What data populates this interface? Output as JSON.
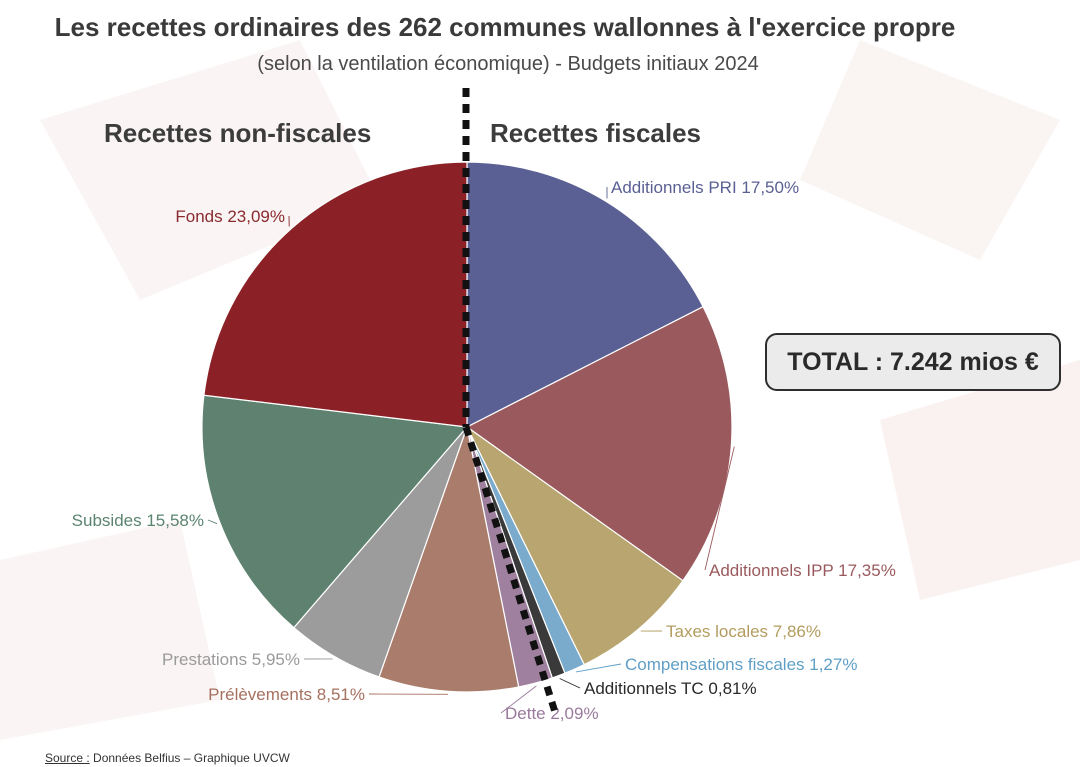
{
  "header": {
    "title": "Les recettes ordinaires des 262 communes wallonnes à l'exercice propre",
    "subtitle": "(selon la ventilation économique) - Budgets initiaux 2024"
  },
  "sides": {
    "left": "Recettes non-fiscales",
    "right": "Recettes fiscales"
  },
  "total_label": "TOTAL : 7.242 mios €",
  "source": {
    "prefix": "Source :",
    "text": "Données Belfius – Graphique UVCW"
  },
  "colors": {
    "divider": "#111111",
    "background_watermark": "#f6e3e0"
  },
  "chart_data": {
    "type": "pie",
    "title": "Les recettes ordinaires des 262 communes wallonnes à l'exercice propre",
    "legend": "none",
    "slices": [
      {
        "label": "Additionnels PRI 17,50%",
        "value": 17.5,
        "color": "#5a6093",
        "label_color": "#5a6093"
      },
      {
        "label": "Additionnels IPP 17,35%",
        "value": 17.35,
        "color": "#9a5a5d",
        "label_color": "#9a5a5d"
      },
      {
        "label": "Taxes locales 7,86%",
        "value": 7.86,
        "color": "#b8a56f",
        "label_color": "#b39c5f"
      },
      {
        "label": "Compensations fiscales 1,27%",
        "value": 1.27,
        "color": "#7aabcc",
        "label_color": "#5f9fc6"
      },
      {
        "label": "Additionnels TC 0,81%",
        "value": 0.81,
        "color": "#3a3a3a",
        "label_color": "#2a2a2a"
      },
      {
        "label": "Dette 2,09%",
        "value": 2.09,
        "color": "#a0809f",
        "label_color": "#9a7a9c"
      },
      {
        "label": "Prélèvements 8,51%",
        "value": 8.51,
        "color": "#a97c6c",
        "label_color": "#a6705f"
      },
      {
        "label": "Prestations 5,95%",
        "value": 5.95,
        "color": "#9c9c9c",
        "label_color": "#9a9a9a"
      },
      {
        "label": "Subsides 15,58%",
        "value": 15.58,
        "color": "#5e826f",
        "label_color": "#5b8470"
      },
      {
        "label": "Fonds 23,09%",
        "value": 23.09,
        "color": "#8b2127",
        "label_color": "#8a2a2f"
      }
    ]
  }
}
